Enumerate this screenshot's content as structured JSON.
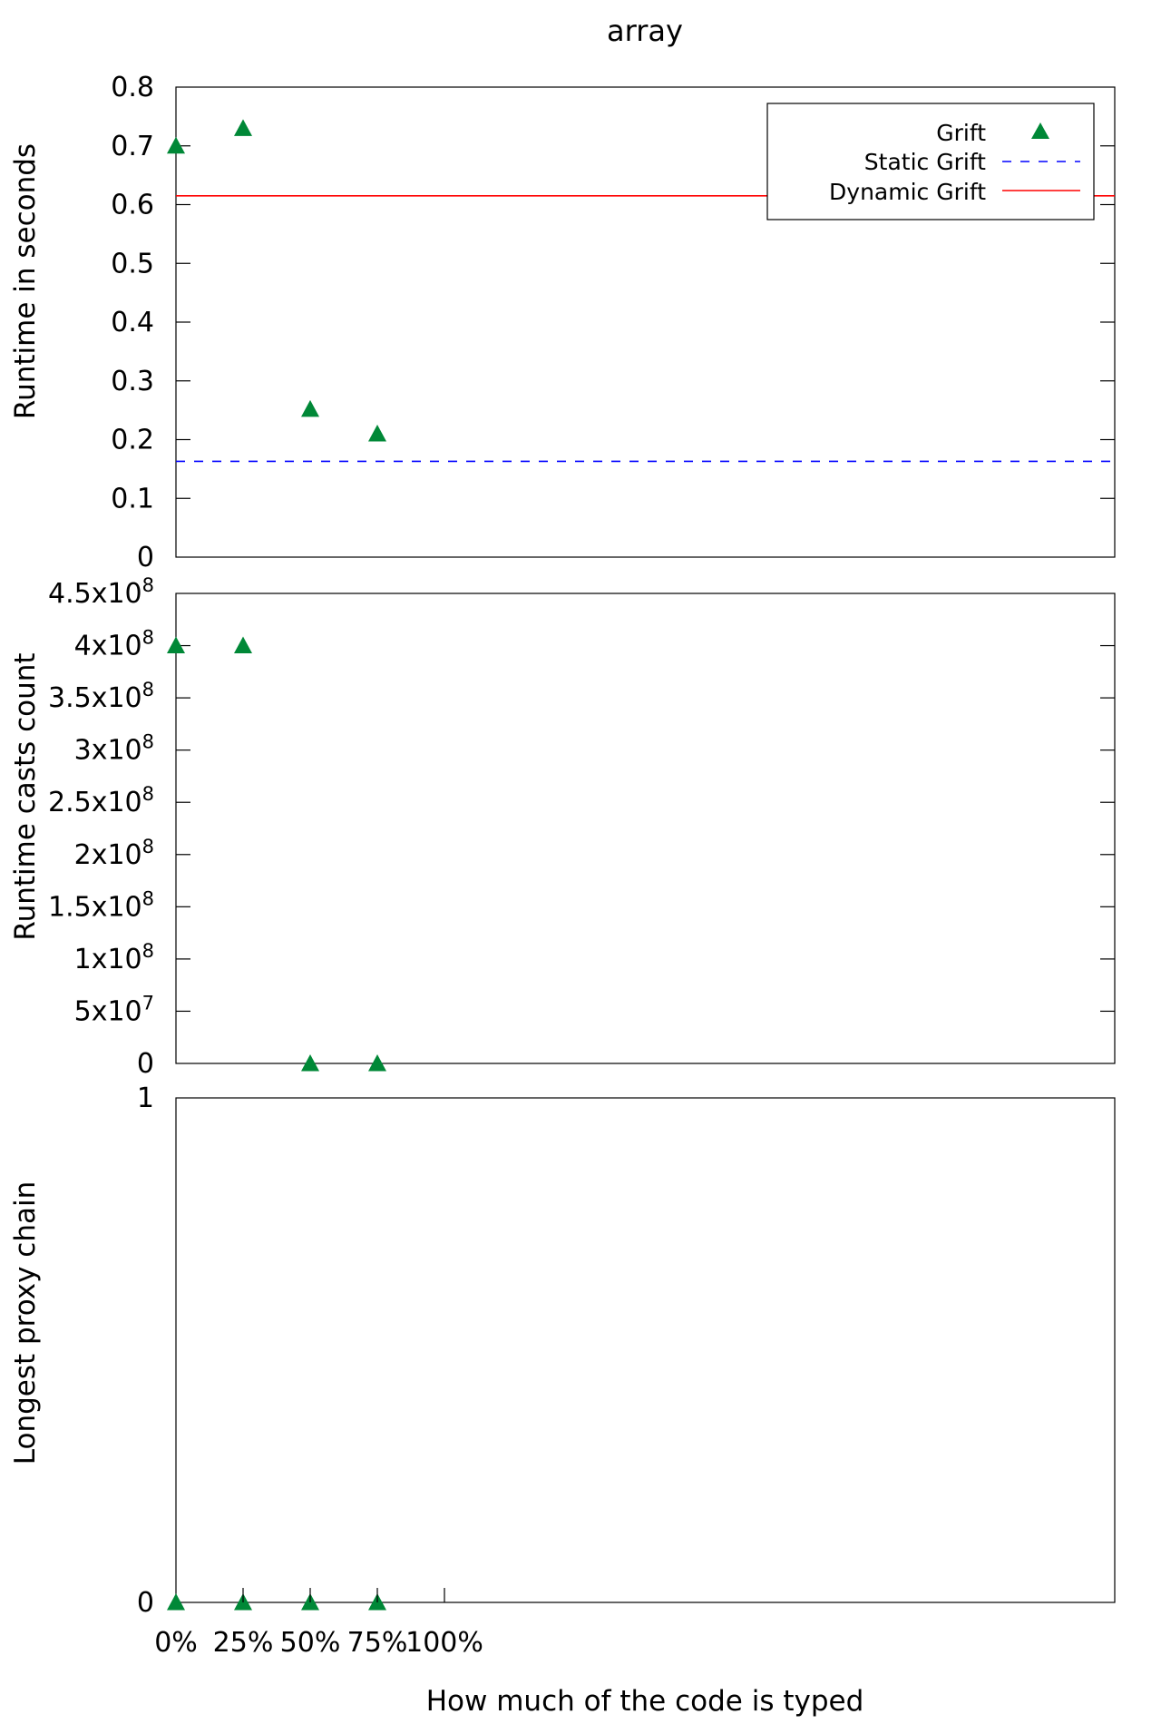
{
  "chart_data": {
    "type": "scatter",
    "title": "array",
    "xlabel": "How much of the code is typed",
    "x_categories": [
      "0%",
      "25%",
      "50%",
      "75%",
      "100%"
    ],
    "colors": {
      "grift": "#008837",
      "static": "#0000ff",
      "dynamic": "#ff0000"
    },
    "panels": [
      {
        "ylabel": "Runtime in seconds",
        "ylim": [
          0,
          0.8
        ],
        "yticks": [
          "0",
          "0.1",
          "0.2",
          "0.3",
          "0.4",
          "0.5",
          "0.6",
          "0.7",
          "0.8"
        ],
        "ytick_values": [
          0,
          0.1,
          0.2,
          0.3,
          0.4,
          0.5,
          0.6,
          0.7,
          0.8
        ],
        "grift_points": [
          {
            "x": 0,
            "y": 0.7
          },
          {
            "x": 25,
            "y": 0.73
          },
          {
            "x": 50,
            "y": 0.252
          },
          {
            "x": 75,
            "y": 0.21
          }
        ],
        "static_grift": 0.163,
        "dynamic_grift": 0.615,
        "legend": {
          "position": "top-right",
          "entries": [
            "Grift",
            "Static Grift",
            "Dynamic Grift"
          ]
        }
      },
      {
        "ylabel": "Runtime casts count",
        "ylim": [
          0,
          450000000
        ],
        "yticks": [
          {
            "base": "0",
            "exp": ""
          },
          {
            "base": "5x10",
            "exp": "7"
          },
          {
            "base": "1x10",
            "exp": "8"
          },
          {
            "base": "1.5x10",
            "exp": "8"
          },
          {
            "base": "2x10",
            "exp": "8"
          },
          {
            "base": "2.5x10",
            "exp": "8"
          },
          {
            "base": "3x10",
            "exp": "8"
          },
          {
            "base": "3.5x10",
            "exp": "8"
          },
          {
            "base": "4x10",
            "exp": "8"
          },
          {
            "base": "4.5x10",
            "exp": "8"
          }
        ],
        "ytick_values": [
          0,
          50000000,
          100000000,
          150000000,
          200000000,
          250000000,
          300000000,
          350000000,
          400000000,
          450000000
        ],
        "grift_points": [
          {
            "x": 0,
            "y": 400000000
          },
          {
            "x": 25,
            "y": 400000000
          },
          {
            "x": 50,
            "y": 0
          },
          {
            "x": 75,
            "y": 0
          }
        ]
      },
      {
        "ylabel": "Longest proxy chain",
        "ylim": [
          0,
          1
        ],
        "yticks": [
          "0",
          "1"
        ],
        "ytick_values": [
          0,
          1
        ],
        "grift_points": [
          {
            "x": 0,
            "y": 0
          },
          {
            "x": 25,
            "y": 0
          },
          {
            "x": 50,
            "y": 0
          },
          {
            "x": 75,
            "y": 0
          }
        ]
      }
    ]
  }
}
